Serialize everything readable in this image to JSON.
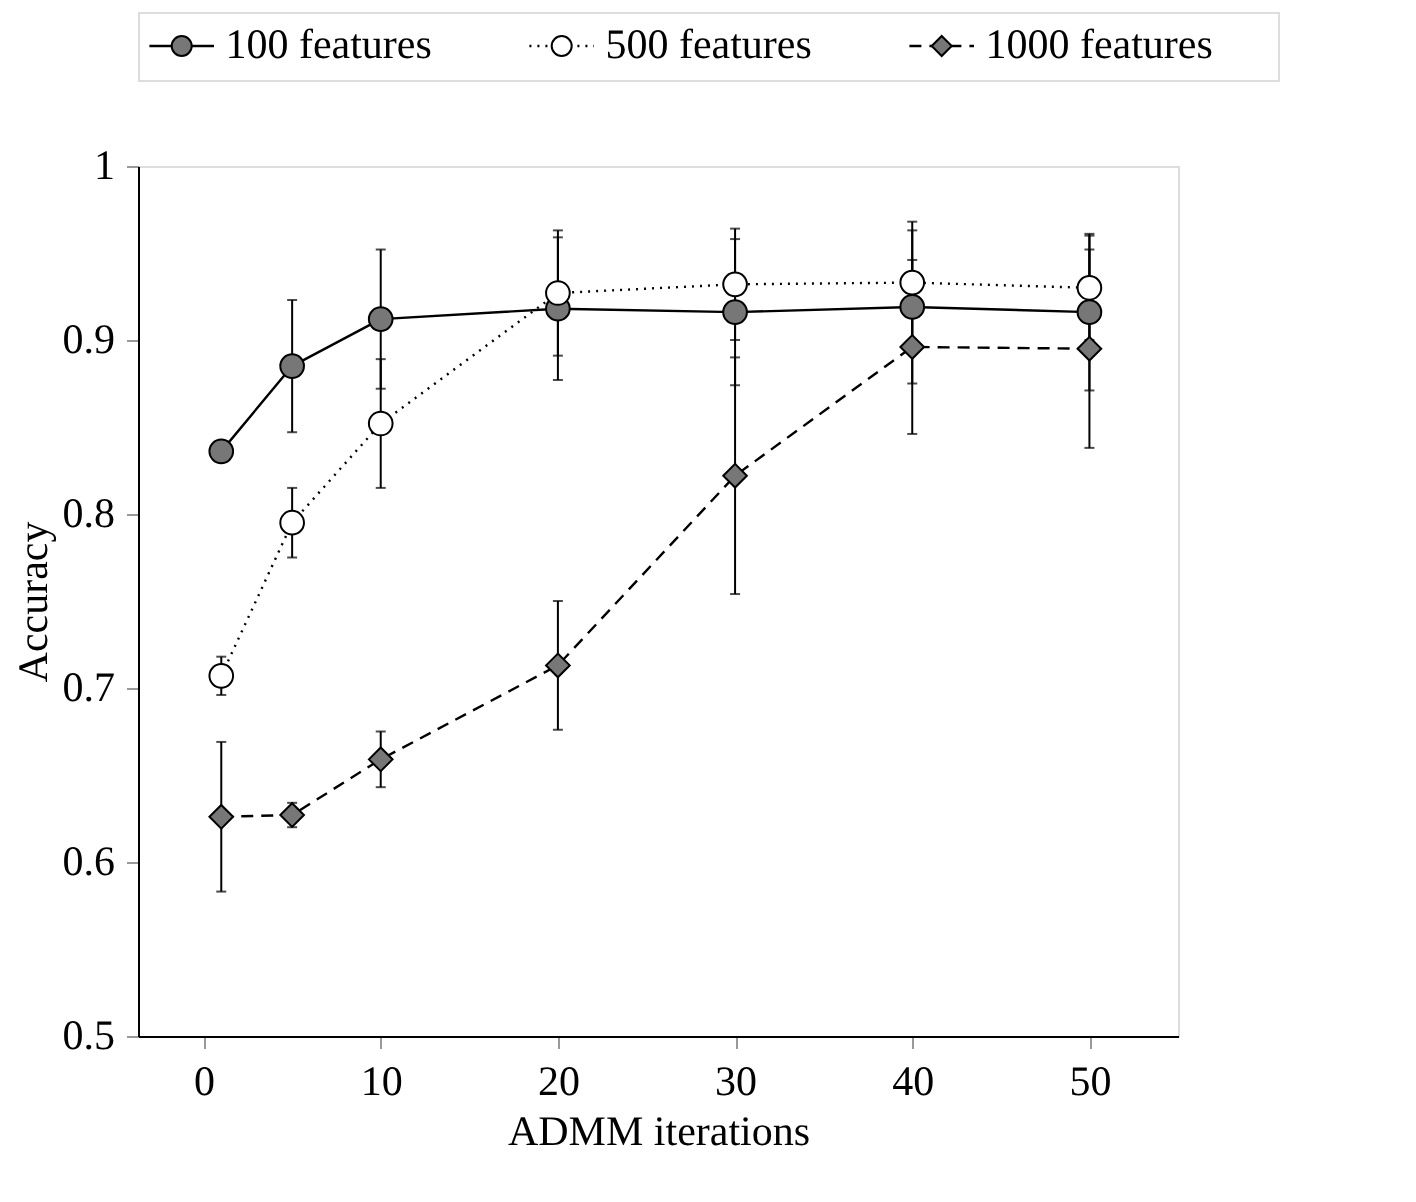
{
  "chart_data": {
    "type": "line",
    "xlabel": "ADMM iterations",
    "ylabel": "Accuracy",
    "x": [
      1,
      5,
      10,
      20,
      30,
      40,
      50
    ],
    "series": [
      {
        "name": "100 features",
        "color": "#777777",
        "marker": "circle",
        "line_style": "solid",
        "values": [
          0.836,
          0.885,
          0.912,
          0.918,
          0.916,
          0.919,
          0.916
        ],
        "errors": [
          0.002,
          0.038,
          0.04,
          0.041,
          0.042,
          0.044,
          0.045
        ]
      },
      {
        "name": "500 features",
        "color": "#ffffff",
        "marker": "circle",
        "line_style": "dotted",
        "values": [
          0.707,
          0.795,
          0.852,
          0.927,
          0.932,
          0.933,
          0.93
        ],
        "errors": [
          0.011,
          0.02,
          0.037,
          0.036,
          0.032,
          0.035,
          0.03
        ]
      },
      {
        "name": "1000 features",
        "color": "#777777",
        "marker": "diamond",
        "line_style": "dashed",
        "values": [
          0.626,
          0.627,
          0.659,
          0.713,
          0.822,
          0.896,
          0.895
        ],
        "errors": [
          0.043,
          0.007,
          0.016,
          0.037,
          0.068,
          0.05,
          0.057
        ]
      }
    ],
    "xlim": [
      -3.7,
      55
    ],
    "xticks": [
      0,
      10,
      20,
      30,
      40,
      50
    ],
    "ylim": [
      0.5,
      1
    ],
    "yticks": [
      0.5,
      0.6,
      0.7,
      0.8,
      0.9,
      1
    ],
    "grid": false,
    "legend": "top"
  }
}
